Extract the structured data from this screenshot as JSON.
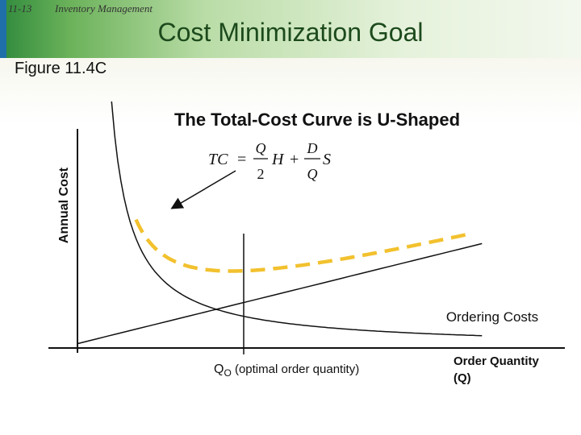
{
  "header": {
    "slide_number": "11-13",
    "course_name": "Inventory Management",
    "title": "Cost Minimization Goal",
    "figure_label": "Figure 11.4C"
  },
  "colors": {
    "total_cost_curve": "#f2c12e",
    "lines": "#111111",
    "header_accent": "#2f8a3c"
  },
  "chart_data": {
    "type": "line",
    "title": "The Total-Cost Curve is U-Shaped",
    "ylabel": "Annual Cost",
    "xlabel": "Order Quantity (Q)",
    "xlabel_lines": [
      "Order Quantity",
      "(Q)"
    ],
    "formula": "TC = (Q/2)H + (D/Q)S",
    "optimum_label": {
      "q": "Q",
      "subscript": "O",
      "text": " (optimal order quantity)"
    },
    "grid": false,
    "series": [
      {
        "name": "",
        "style": "dashed",
        "color": "#f2c12e"
      },
      {
        "name": "",
        "style": "solid",
        "color": "#111111"
      },
      {
        "name": "Ordering Costs",
        "style": "solid",
        "color": "#111111"
      }
    ]
  }
}
